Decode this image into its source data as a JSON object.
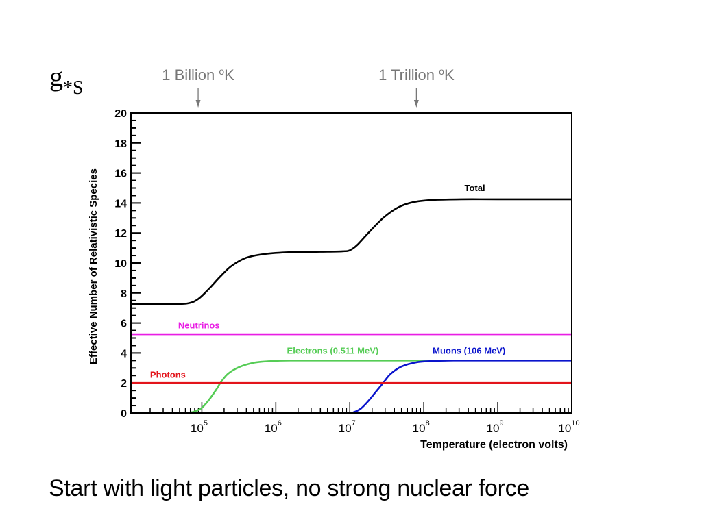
{
  "symbol": {
    "main": "g",
    "sub": "*S"
  },
  "caption": "Start with light particles, no strong nuclear force",
  "annotations": [
    {
      "text": "1 Billion °K",
      "x_log10": 4.95
    },
    {
      "text": "1 Trillion °K",
      "x_log10": 7.9
    }
  ],
  "chart_data": {
    "type": "line",
    "title": "",
    "xlabel": "Temperature (electron volts)",
    "ylabel": "Effective Number of Relativistic Species",
    "xscale": "log",
    "xlim": [
      11000,
      10000000000
    ],
    "ylim": [
      0,
      20
    ],
    "xticks": [
      {
        "base": "10",
        "exp": "5",
        "value": 100000
      },
      {
        "base": "10",
        "exp": "6",
        "value": 1000000
      },
      {
        "base": "10",
        "exp": "7",
        "value": 10000000
      },
      {
        "base": "10",
        "exp": "8",
        "value": 100000000
      },
      {
        "base": "10",
        "exp": "9",
        "value": 1000000000
      },
      {
        "base": "10",
        "exp": "10",
        "value": 10000000000
      }
    ],
    "yticks": [
      0,
      2,
      4,
      6,
      8,
      10,
      12,
      14,
      16,
      18,
      20
    ],
    "grid": false,
    "legend": "inline labels",
    "series": [
      {
        "name": "Total",
        "color": "#000000",
        "label_pos": [
          8.55,
          14.8
        ],
        "x_log10": [
          4.04,
          4.5,
          4.8,
          4.95,
          5.1,
          5.25,
          5.4,
          5.6,
          5.85,
          6.2,
          6.6,
          6.9,
          7.0,
          7.1,
          7.25,
          7.45,
          7.65,
          7.85,
          8.1,
          8.5,
          9.0,
          10.0
        ],
        "y": [
          7.25,
          7.25,
          7.3,
          7.6,
          8.3,
          9.1,
          9.8,
          10.35,
          10.6,
          10.72,
          10.75,
          10.78,
          10.85,
          11.2,
          12.0,
          13.0,
          13.7,
          14.05,
          14.2,
          14.25,
          14.25,
          14.25
        ]
      },
      {
        "name": "Neutrinos",
        "color": "#e91ee4",
        "label_pos": [
          4.68,
          5.65
        ],
        "x_log10": [
          4.04,
          10.0
        ],
        "y": [
          5.25,
          5.25
        ]
      },
      {
        "name": "Electrons (0.511 MeV)",
        "color": "#55cc55",
        "label_pos": [
          6.15,
          3.95
        ],
        "x_log10": [
          4.8,
          4.9,
          5.0,
          5.1,
          5.2,
          5.25,
          5.35,
          5.5,
          5.7,
          5.9,
          6.2,
          7.0,
          8.0,
          8.3
        ],
        "y": [
          0.0,
          0.1,
          0.35,
          0.9,
          1.6,
          2.0,
          2.6,
          3.05,
          3.35,
          3.45,
          3.5,
          3.5,
          3.5,
          3.5
        ]
      },
      {
        "name": "Muons (106 MeV)",
        "color": "#0a14cc",
        "label_pos": [
          8.12,
          3.95
        ],
        "x_log10": [
          4.04,
          6.95,
          7.05,
          7.15,
          7.25,
          7.35,
          7.45,
          7.55,
          7.7,
          7.9,
          8.1,
          8.4,
          9.0,
          10.0
        ],
        "y": [
          0.0,
          0.0,
          0.05,
          0.3,
          0.8,
          1.4,
          2.0,
          2.6,
          3.1,
          3.38,
          3.46,
          3.5,
          3.5,
          3.5
        ]
      },
      {
        "name": "Photons",
        "color": "#e3141b",
        "label_pos": [
          4.3,
          2.35
        ],
        "x_log10": [
          4.04,
          10.0
        ],
        "y": [
          2.0,
          2.0
        ]
      }
    ]
  }
}
